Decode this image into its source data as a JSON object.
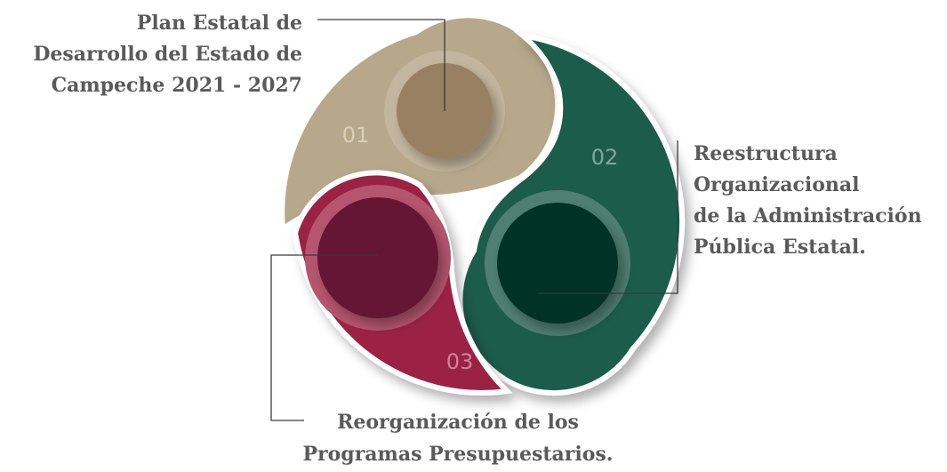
{
  "segments": [
    {
      "number": "01",
      "label": [
        "Plan Estatal de",
        "Desarrollo del Estado de",
        "Campeche 2021 - 2027"
      ]
    },
    {
      "number": "02",
      "label": [
        "Reestructura",
        "Organizacional",
        "de la Administración",
        "Pública Estatal."
      ]
    },
    {
      "number": "03",
      "label": [
        "Reorganización de los",
        "Programas Presupuestarios."
      ]
    }
  ]
}
